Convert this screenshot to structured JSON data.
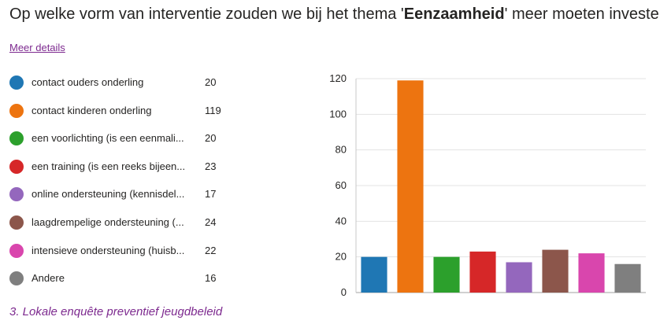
{
  "title": {
    "prefix": "Op welke vorm van interventie zouden we bij het thema '",
    "bold": "Eenzaamheid",
    "suffix": "' meer moeten investeren?"
  },
  "more_details_link": "Meer details",
  "legend": [
    {
      "label": "contact ouders onderling",
      "count": "20",
      "color": "#1f77b4"
    },
    {
      "label": "contact kinderen onderling",
      "count": "119",
      "color": "#ed7410"
    },
    {
      "label": "een voorlichting (is een eenmali...",
      "count": "20",
      "color": "#2ca02c"
    },
    {
      "label": "een training (is een reeks bijeen...",
      "count": "23",
      "color": "#d62728"
    },
    {
      "label": "online ondersteuning (kennisdel...",
      "count": "17",
      "color": "#9467bd"
    },
    {
      "label": "laagdrempelige ondersteuning (...",
      "count": "24",
      "color": "#8c564b"
    },
    {
      "label": "intensieve ondersteuning (huisb...",
      "count": "22",
      "color": "#d946ad"
    },
    {
      "label": "Andere",
      "count": "16",
      "color": "#7f7f7f"
    }
  ],
  "footer": "3. Lokale  enquête preventief jeugdbeleid",
  "chart_data": {
    "type": "bar",
    "categories": [
      "contact ouders onderling",
      "contact kinderen onderling",
      "een voorlichting",
      "een training",
      "online ondersteuning",
      "laagdrempelige ondersteuning",
      "intensieve ondersteuning",
      "Andere"
    ],
    "values": [
      20,
      119,
      20,
      23,
      17,
      24,
      22,
      16
    ],
    "colors": [
      "#1f77b4",
      "#ed7410",
      "#2ca02c",
      "#d62728",
      "#9467bd",
      "#8c564b",
      "#d946ad",
      "#7f7f7f"
    ],
    "ylim": [
      0,
      120
    ],
    "yticks": [
      "0",
      "20",
      "40",
      "60",
      "80",
      "100",
      "120"
    ],
    "grid": true,
    "title": "",
    "xlabel": "",
    "ylabel": ""
  }
}
